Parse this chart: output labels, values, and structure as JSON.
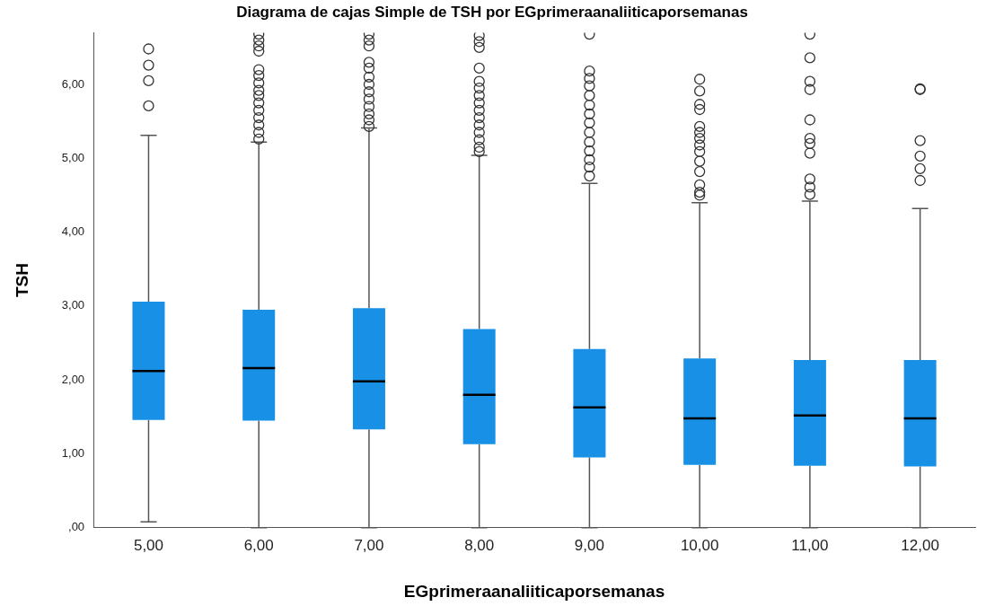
{
  "chart_data": {
    "type": "box",
    "title": "Diagrama de cajas Simple de TSH por EGprimeraanaliiticaporsemanas",
    "xlabel": "EGprimeraanaliiticaporsemanas",
    "ylabel": "TSH",
    "categories": [
      "5,00",
      "6,00",
      "7,00",
      "8,00",
      "9,00",
      "10,00",
      "11,00",
      "12,00"
    ],
    "color": "#1790e6",
    "marker": "circle",
    "grid": false,
    "legend": false,
    "ylim": [
      0,
      6.7
    ],
    "yticks": [
      {
        "value": 0,
        "label": ",00"
      },
      {
        "value": 1,
        "label": "1,00"
      },
      {
        "value": 2,
        "label": "2,00"
      },
      {
        "value": 3,
        "label": "3,00"
      },
      {
        "value": 4,
        "label": "4,00"
      },
      {
        "value": 5,
        "label": "5,00"
      },
      {
        "value": 6,
        "label": "6,00"
      }
    ],
    "boxes": [
      {
        "low": 0.08,
        "q1": 1.46,
        "median": 2.12,
        "q3": 3.06,
        "high": 5.31,
        "outliers": [
          6.48,
          6.26,
          6.05,
          5.71
        ]
      },
      {
        "low": 0,
        "q1": 1.45,
        "median": 2.16,
        "q3": 2.95,
        "high": 5.22,
        "outliers": [
          6.68,
          6.6,
          6.52,
          6.45,
          6.2,
          6.12,
          6.02,
          5.92,
          5.85,
          5.75,
          5.65,
          5.55,
          5.45,
          5.35,
          5.26
        ]
      },
      {
        "low": 0,
        "q1": 1.33,
        "median": 1.98,
        "q3": 2.97,
        "high": 5.41,
        "outliers": [
          6.68,
          6.6,
          6.52,
          6.3,
          6.22,
          6.1,
          6.0,
          5.9,
          5.8,
          5.7,
          5.6,
          5.52,
          5.43
        ]
      },
      {
        "low": 0,
        "q1": 1.13,
        "median": 1.8,
        "q3": 2.69,
        "high": 5.04,
        "outliers": [
          6.66,
          6.58,
          6.5,
          6.22,
          6.04,
          5.95,
          5.85,
          5.75,
          5.65,
          5.55,
          5.45,
          5.35,
          5.25,
          5.15,
          5.09
        ]
      },
      {
        "low": 0,
        "q1": 0.95,
        "median": 1.63,
        "q3": 2.42,
        "high": 4.66,
        "outliers": [
          6.68,
          6.18,
          6.08,
          5.98,
          5.85,
          5.72,
          5.6,
          5.48,
          5.35,
          5.22,
          5.1,
          4.98,
          4.88,
          4.76
        ]
      },
      {
        "low": 0,
        "q1": 0.85,
        "median": 1.48,
        "q3": 2.29,
        "high": 4.4,
        "outliers": [
          6.07,
          5.91,
          5.73,
          5.66,
          5.43,
          5.35,
          5.27,
          5.18,
          5.09,
          4.96,
          4.82,
          4.64,
          4.54,
          4.5
        ]
      },
      {
        "low": 0,
        "q1": 0.84,
        "median": 1.52,
        "q3": 2.27,
        "high": 4.42,
        "outliers": [
          6.68,
          6.36,
          6.04,
          5.93,
          5.52,
          5.27,
          5.2,
          5.07,
          4.72,
          4.61,
          4.51
        ]
      },
      {
        "low": 0,
        "q1": 0.83,
        "median": 1.48,
        "q3": 2.27,
        "high": 4.32,
        "outliers": [
          5.94,
          5.93,
          5.24,
          5.03,
          4.86,
          4.7
        ]
      }
    ]
  }
}
